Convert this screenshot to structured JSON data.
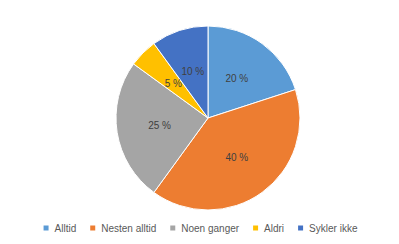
{
  "chart_data": {
    "type": "pie",
    "categories": [
      "Alltid",
      "Nesten alltid",
      "Noen ganger",
      "Aldri",
      "Sykler ikke"
    ],
    "values": [
      20,
      40,
      25,
      5,
      10
    ],
    "value_labels": [
      "20 %",
      "40 %",
      "25 %",
      "5 %",
      "10 %"
    ],
    "colors": [
      "#5b9bd5",
      "#ed7d31",
      "#a5a5a5",
      "#ffc000",
      "#4472c4"
    ],
    "data_labels": true,
    "legend": "bottom"
  }
}
